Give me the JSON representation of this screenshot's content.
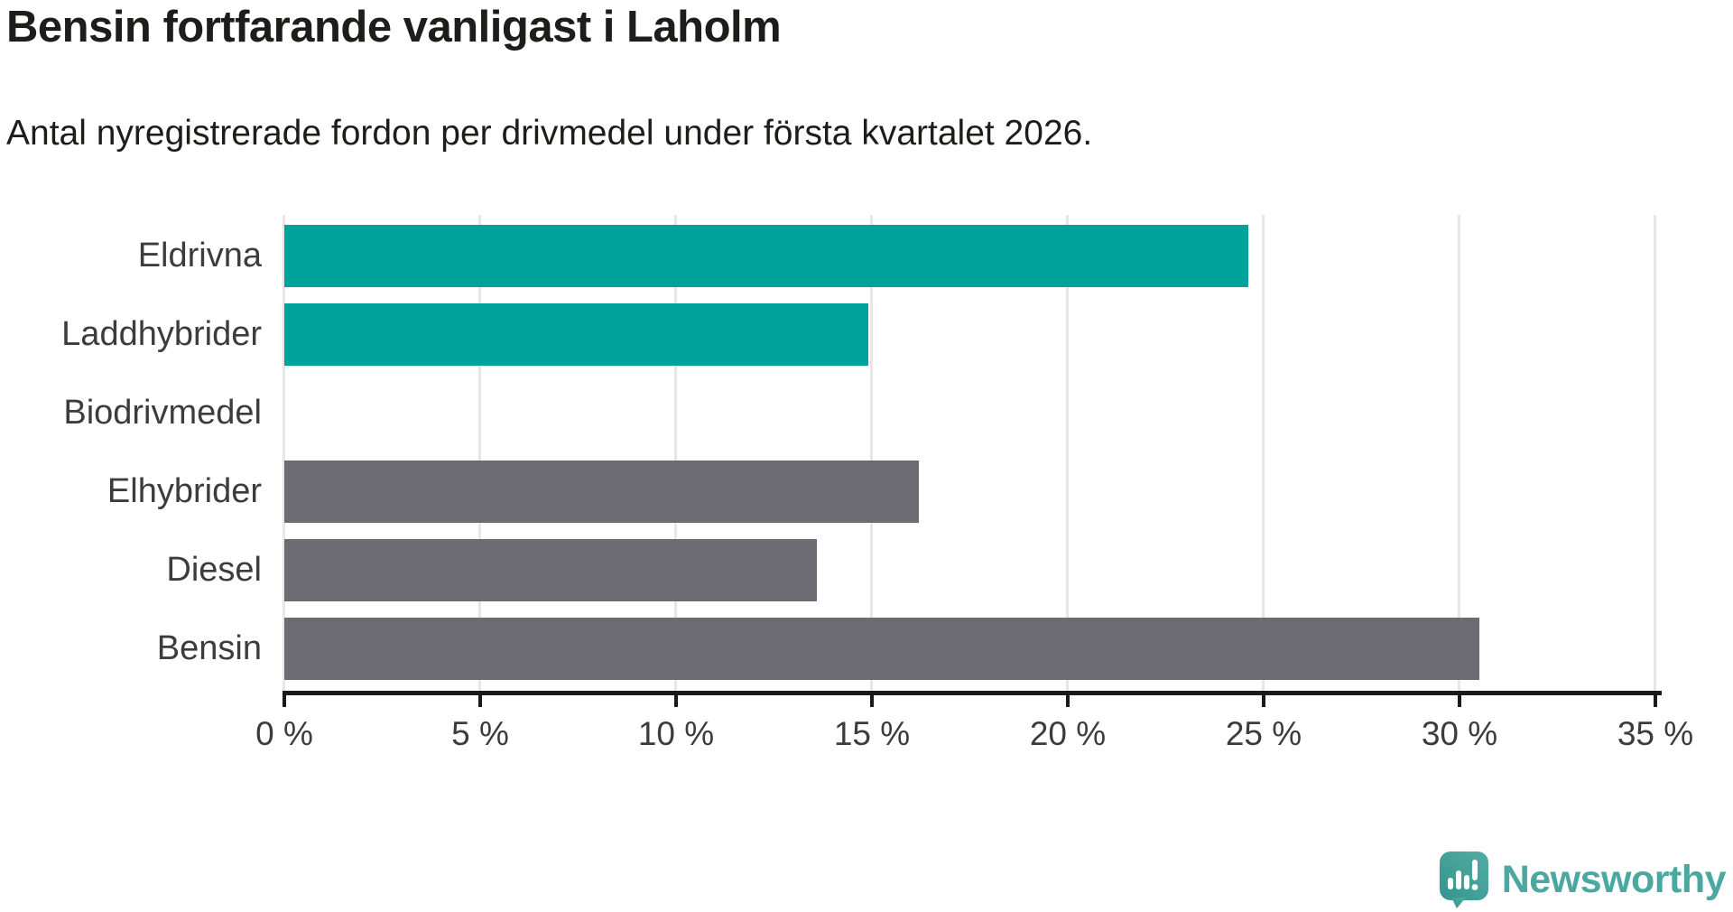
{
  "header": {
    "title": "Bensin fortfarande vanligast i Laholm",
    "subtitle": "Antal nyregistrerade fordon per drivmedel under första kvartalet 2026."
  },
  "chart_data": {
    "type": "bar",
    "orientation": "horizontal",
    "title": "Bensin fortfarande vanligast i Laholm",
    "subtitle": "Antal nyregistrerade fordon per drivmedel under första kvartalet 2026.",
    "xlabel": "",
    "ylabel": "",
    "unit": "%",
    "categories": [
      "Eldrivna",
      "Laddhybrider",
      "Biodrivmedel",
      "Elhybrider",
      "Diesel",
      "Bensin"
    ],
    "values": [
      24.6,
      14.9,
      0,
      16.2,
      13.6,
      30.5
    ],
    "bar_colors": [
      "#00a39b",
      "#00a39b",
      "#00a39b",
      "#6c6b72",
      "#6c6b72",
      "#6c6b72"
    ],
    "xlim": [
      0,
      35
    ],
    "x_ticks": [
      0,
      5,
      10,
      15,
      20,
      25,
      30,
      35
    ],
    "x_tick_labels": [
      "0 %",
      "5 %",
      "10 %",
      "15 %",
      "20 %",
      "25 %",
      "30 %",
      "35 %"
    ],
    "grid": true,
    "legend": "none"
  },
  "colors": {
    "accent_teal": "#00a39b",
    "neutral_gray": "#6c6b72",
    "axis": "#1a1a1a",
    "gridline": "#e7e7e7",
    "text": "#1d1d1b",
    "brand_teal": "#4ba8a0"
  },
  "footer": {
    "brand": "Newsworthy",
    "logo_icon": "newsworthy-speech-bubble-bar-chart-icon"
  }
}
